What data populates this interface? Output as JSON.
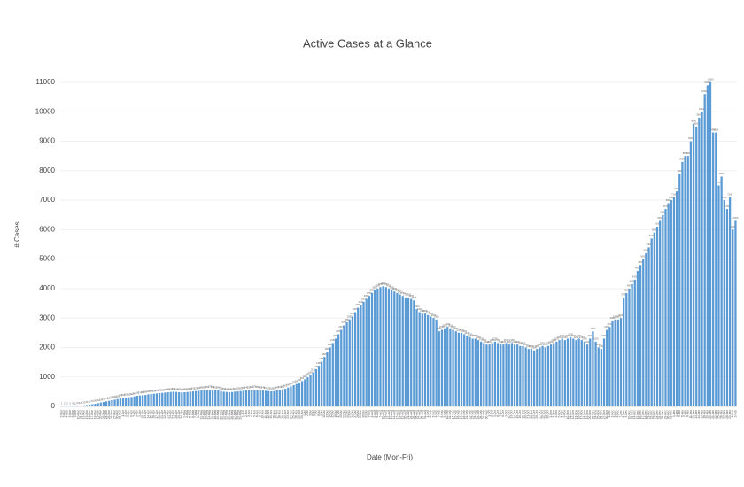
{
  "chart_data": {
    "type": "bar",
    "title": "Active Cases at a Glance",
    "x_label": "Date (Mon-Fri)",
    "y_label": "# Cases",
    "color": "#5b9bd5",
    "grid": true,
    "ylim": [
      0,
      11000
    ],
    "yticks": [
      0,
      1000,
      2000,
      3000,
      4000,
      5000,
      6000,
      7000,
      8000,
      9000,
      10000,
      11000
    ],
    "categories": [
      "2-Mar",
      "3-Mar",
      "4-Mar",
      "5-Mar",
      "6-Mar",
      "9-Mar",
      "10-Mar",
      "11-Mar",
      "12-Mar",
      "13-Mar",
      "16-Mar",
      "17-Mar",
      "18-Mar",
      "19-Mar",
      "20-Mar",
      "23-Mar",
      "24-Mar",
      "25-Mar",
      "26-Mar",
      "27-Mar",
      "30-Mar",
      "31-Mar",
      "1-Apr",
      "2-Apr",
      "3-Apr",
      "6-Apr",
      "7-Apr",
      "8-Apr",
      "9-Apr",
      "10-Apr",
      "13-Apr",
      "14-Apr",
      "15-Apr",
      "16-Apr",
      "17-Apr",
      "20-Apr",
      "21-Apr",
      "22-Apr",
      "23-Apr",
      "24-Apr",
      "27-Apr",
      "28-Apr",
      "29-Apr",
      "30-Apr",
      "1-May",
      "4-May",
      "5-May",
      "6-May",
      "7-May",
      "8-May",
      "11-May",
      "12-May",
      "13-May",
      "14-May",
      "15-May",
      "18-May",
      "19-May",
      "20-May",
      "21-May",
      "22-May",
      "25-May",
      "26-May",
      "27-May",
      "28-May",
      "29-May",
      "1-Jun",
      "2-Jun",
      "3-Jun",
      "4-Jun",
      "5-Jun",
      "8-Jun",
      "9-Jun",
      "10-Jun",
      "11-Jun",
      "12-Jun",
      "15-Jun",
      "16-Jun",
      "17-Jun",
      "18-Jun",
      "19-Jun",
      "22-Jun",
      "23-Jun",
      "24-Jun",
      "25-Jun",
      "26-Jun",
      "29-Jun",
      "30-Jun",
      "1-Jul",
      "2-Jul",
      "3-Jul",
      "6-Jul",
      "7-Jul",
      "8-Jul",
      "9-Jul",
      "10-Jul",
      "13-Jul",
      "14-Jul",
      "15-Jul",
      "16-Jul",
      "17-Jul",
      "20-Jul",
      "21-Jul",
      "22-Jul",
      "23-Jul",
      "24-Jul",
      "27-Jul",
      "28-Jul",
      "29-Jul",
      "30-Jul",
      "31-Jul",
      "3-Aug",
      "4-Aug",
      "5-Aug",
      "6-Aug",
      "7-Aug",
      "10-Aug",
      "11-Aug",
      "12-Aug",
      "13-Aug",
      "14-Aug",
      "17-Aug",
      "18-Aug",
      "19-Aug",
      "20-Aug",
      "21-Aug",
      "24-Aug",
      "25-Aug",
      "26-Aug",
      "27-Aug",
      "28-Aug",
      "31-Aug",
      "1-Sep",
      "2-Sep",
      "3-Sep",
      "4-Sep",
      "7-Sep",
      "8-Sep",
      "9-Sep",
      "10-Sep",
      "11-Sep",
      "14-Sep",
      "15-Sep",
      "16-Sep",
      "17-Sep",
      "18-Sep",
      "21-Sep",
      "22-Sep",
      "23-Sep",
      "24-Sep",
      "25-Sep",
      "28-Sep",
      "29-Sep",
      "30-Sep",
      "1-Oct",
      "2-Oct",
      "5-Oct",
      "6-Oct",
      "7-Oct",
      "8-Oct",
      "9-Oct",
      "12-Oct",
      "13-Oct",
      "14-Oct",
      "15-Oct",
      "16-Oct",
      "19-Oct",
      "20-Oct",
      "21-Oct",
      "22-Oct",
      "23-Oct",
      "26-Oct",
      "27-Oct",
      "28-Oct",
      "29-Oct",
      "30-Oct",
      "2-Nov",
      "3-Nov",
      "4-Nov",
      "5-Nov",
      "6-Nov",
      "9-Nov",
      "10-Nov",
      "11-Nov",
      "12-Nov",
      "13-Nov",
      "16-Nov",
      "17-Nov",
      "18-Nov",
      "19-Nov",
      "20-Nov",
      "23-Nov",
      "24-Nov",
      "25-Nov",
      "26-Nov",
      "27-Nov",
      "30-Nov",
      "1-Dec",
      "2-Dec",
      "3-Dec",
      "4-Dec",
      "7-Dec",
      "8-Dec",
      "9-Dec",
      "10-Dec",
      "11-Dec",
      "14-Dec",
      "15-Dec",
      "16-Dec",
      "17-Dec",
      "18-Dec",
      "21-Dec",
      "22-Dec",
      "23-Dec",
      "24-Dec",
      "25-Dec",
      "28-Dec",
      "29-Dec",
      "30-Dec",
      "31-Dec",
      "1-Jan",
      "4-Jan",
      "5-Jan",
      "6-Jan",
      "7-Jan",
      "8-Jan",
      "11-Jan",
      "12-Jan",
      "13-Jan",
      "14-Jan",
      "15-Jan",
      "18-Jan",
      "19-Jan",
      "20-Jan",
      "21-Jan",
      "22-Jan",
      "25-Jan",
      "26-Jan",
      "27-Jan",
      "28-Jan",
      "29-Jan",
      "1-Feb",
      "2-Feb"
    ],
    "values": [
      1,
      2,
      3,
      5,
      8,
      12,
      18,
      25,
      35,
      45,
      60,
      75,
      90,
      110,
      130,
      150,
      170,
      190,
      210,
      230,
      250,
      270,
      290,
      300,
      310,
      320,
      340,
      360,
      370,
      380,
      390,
      410,
      420,
      430,
      440,
      450,
      460,
      470,
      480,
      490,
      500,
      490,
      480,
      470,
      480,
      490,
      500,
      510,
      520,
      530,
      540,
      550,
      560,
      570,
      560,
      550,
      540,
      520,
      500,
      490,
      480,
      490,
      500,
      510,
      520,
      530,
      540,
      550,
      560,
      570,
      560,
      550,
      540,
      530,
      520,
      510,
      520,
      540,
      560,
      580,
      600,
      640,
      680,
      720,
      760,
      800,
      860,
      920,
      990,
      1060,
      1150,
      1260,
      1380,
      1520,
      1680,
      1850,
      2000,
      2150,
      2300,
      2450,
      2600,
      2750,
      2850,
      2950,
      3050,
      3200,
      3350,
      3450,
      3550,
      3650,
      3750,
      3850,
      3950,
      4000,
      4050,
      4080,
      4050,
      4000,
      3950,
      3900,
      3850,
      3800,
      3750,
      3700,
      3700,
      3650,
      3600,
      3300,
      3200,
      3150,
      3150,
      3100,
      3050,
      3000,
      2950,
      2550,
      2600,
      2650,
      2700,
      2650,
      2600,
      2550,
      2500,
      2500,
      2450,
      2400,
      2350,
      2300,
      2300,
      2250,
      2200,
      2150,
      2100,
      2100,
      2150,
      2200,
      2150,
      2100,
      2100,
      2150,
      2100,
      2150,
      2100,
      2100,
      2050,
      2050,
      2000,
      1950,
      1950,
      1900,
      1950,
      2000,
      2050,
      2000,
      2050,
      2100,
      2150,
      2200,
      2250,
      2300,
      2250,
      2300,
      2350,
      2300,
      2250,
      2300,
      2250,
      2200,
      2100,
      2300,
      2550,
      2200,
      2000,
      1950,
      2300,
      2600,
      2700,
      2900,
      2950,
      2950,
      3000,
      3700,
      3850,
      4000,
      4150,
      4300,
      4600,
      4800,
      5000,
      5200,
      5400,
      5700,
      5900,
      6100,
      6300,
      6500,
      6700,
      6900,
      7000,
      7100,
      7300,
      7900,
      8300,
      8500,
      8500,
      9000,
      9600,
      9500,
      9800,
      10000,
      10600,
      10900,
      11000,
      9300,
      9300,
      7500,
      7800,
      7000,
      6700,
      7100,
      6000,
      6300
    ]
  }
}
